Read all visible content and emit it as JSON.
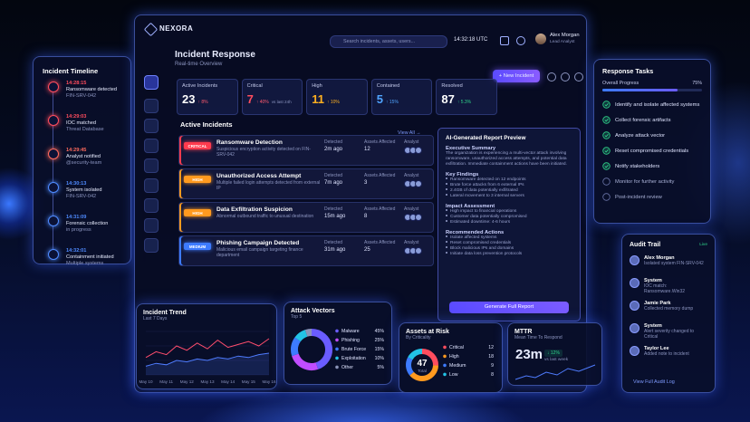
{
  "header": {
    "logo": "NEXORA",
    "search": "Search incidents, assets, users...",
    "time": "14:32:18 UTC",
    "user": "Alex Morgan",
    "role": "Lead Analyst"
  },
  "page": {
    "title": "Incident Response",
    "subtitle": "Real-time Overview",
    "new_button": "+ New Incident"
  },
  "stats": [
    {
      "label": "Active Incidents",
      "value": 23,
      "change": "↑ 8%",
      "color": "#ffffff",
      "change_color": "#ff5a6e"
    },
    {
      "label": "Critical",
      "value": 7,
      "change": "↑ 40%",
      "note": "vs last 24h",
      "color": "#ff4d5e",
      "change_color": "#ff5a6e"
    },
    {
      "label": "High",
      "value": 11,
      "change": "↑ 10%",
      "color": "#ffb020",
      "change_color": "#ffb020"
    },
    {
      "label": "Contained",
      "value": 5,
      "change": "↑ 15%",
      "color": "#4fa3ff",
      "change_color": "#4fa3ff"
    },
    {
      "label": "Resolved",
      "value": 87,
      "change": "↑ 5.3%",
      "color": "#ffffff",
      "change_color": "#2fd38a"
    }
  ],
  "timeline": {
    "title": "Incident Timeline",
    "events": [
      {
        "time": "14:28:15",
        "title": "Ransomware detected",
        "detail": "FIN-SRV-042",
        "color": "#ff4d5e"
      },
      {
        "time": "14:29:03",
        "title": "IOC matched",
        "detail": "Threat Database",
        "color": "#ff4d5e"
      },
      {
        "time": "14:29:45",
        "title": "Analyst notified",
        "detail": "@security-team",
        "color": "#ff6b5e"
      },
      {
        "time": "14:30:13",
        "title": "System isolated",
        "detail": "FIN-SRV-042",
        "color": "#4f8bff"
      },
      {
        "time": "14:31:09",
        "title": "Forensic collection",
        "detail": "in progress",
        "color": "#4f8bff"
      },
      {
        "time": "14:32:01",
        "title": "Containment initiated",
        "detail": "Multiple systems",
        "color": "#4f8bff"
      }
    ]
  },
  "incidents": {
    "title": "Active Incidents",
    "view_all": "View All →",
    "columns": [
      "Detected",
      "Assets Affected",
      "Analyst"
    ],
    "rows": [
      {
        "severity": "CRITICAL",
        "color": "#ff3b4e",
        "title": "Ransomware Detection",
        "description": "Suspicious encryption activity detected on FIN-SRV-042",
        "detected": "2m ago",
        "assets": 12
      },
      {
        "severity": "HIGH",
        "color": "#ff9a1f",
        "title": "Unauthorized Access Attempt",
        "description": "Multiple failed login attempts detected from external IP",
        "detected": "7m ago",
        "assets": 3
      },
      {
        "severity": "HIGH",
        "color": "#ff9a1f",
        "title": "Data Exfiltration Suspicion",
        "description": "Abnormal outbound traffic to unusual destination",
        "detected": "15m ago",
        "assets": 8
      },
      {
        "severity": "MEDIUM",
        "color": "#3d7bff",
        "title": "Phishing Campaign Detected",
        "description": "Malicious email campaign targeting finance department",
        "detected": "31m ago",
        "assets": 25
      }
    ]
  },
  "report": {
    "title": "AI-Generated Report Preview",
    "summary_heading": "Executive Summary",
    "summary": "The organization is experiencing a multi-vector attack involving ransomware, unauthorized access attempts, and potential data exfiltration. Immediate containment actions have been initiated.",
    "sections": [
      {
        "heading": "Key Findings",
        "items": [
          "Ransomware detected on 12 endpoints",
          "Brute force attacks from 6 external IPs",
          "2.4GB of data potentially exfiltrated",
          "Lateral movement to 3 internal servers"
        ]
      },
      {
        "heading": "Impact Assessment",
        "items": [
          "High impact to financial operations",
          "Customer data potentially compromised",
          "Estimated downtime: 4-6 hours"
        ]
      },
      {
        "heading": "Recommended Actions",
        "items": [
          "Isolate affected systems",
          "Reset compromised credentials",
          "Block malicious IPs and domains",
          "Initiate data loss prevention protocols"
        ]
      }
    ],
    "button": "Generate Full Report"
  },
  "tasks": {
    "title": "Response Tasks",
    "progress_title": "Overall Progress",
    "progress": 75,
    "progress_label": "75%",
    "items": [
      {
        "text": "Identify and isolate affected systems",
        "done": true
      },
      {
        "text": "Collect forensic artifacts",
        "done": true
      },
      {
        "text": "Analyze attack vector",
        "done": true
      },
      {
        "text": "Reset compromised credentials",
        "done": true
      },
      {
        "text": "Notify stakeholders",
        "done": true
      },
      {
        "text": "Monitor for further activity",
        "done": false
      },
      {
        "text": "Post-incident review",
        "done": false
      }
    ]
  },
  "audit": {
    "title": "Audit Trail",
    "live": "Live",
    "items": [
      {
        "actor": "Alex Morgan",
        "action": "Isolated system FIN-SRV-042"
      },
      {
        "actor": "System",
        "action": "IOC match: Ransomware.Win32"
      },
      {
        "actor": "Jamie Park",
        "action": "Collected memory dump"
      },
      {
        "actor": "System",
        "action": "Alert severity changed to Critical"
      },
      {
        "actor": "Taylor Lee",
        "action": "Added note to incident"
      }
    ],
    "link": "View Full Audit Log"
  },
  "mttr": {
    "title": "MTTR",
    "subtitle": "Mean Time To Respond",
    "value": "23m",
    "change": "↓ 12%",
    "note": "vs last week"
  },
  "chart_data": [
    {
      "type": "line",
      "title": "Incident Trend",
      "subtitle": "Last 7 Days",
      "categories": [
        "May 10",
        null,
        "May 11",
        null,
        "May 12",
        null,
        "May 13",
        null,
        "May 14",
        null,
        "May 15",
        null,
        "May 16"
      ],
      "series": [
        {
          "color": "#ff4d6d",
          "values": [
            12,
            16,
            14,
            20,
            17,
            22,
            18,
            24,
            19,
            21,
            23,
            20,
            25
          ]
        },
        {
          "color": "#4f7cff",
          "values": [
            6,
            8,
            7,
            10,
            9,
            11,
            10,
            12,
            11,
            13,
            12,
            14,
            15
          ]
        }
      ],
      "ylim": [
        0,
        30
      ]
    },
    {
      "type": "pie",
      "donut": true,
      "title": "Attack Vectors",
      "subtitle": "Top 5",
      "categories": [
        "Malware",
        "Phishing",
        "Brute Force",
        "Exploitation",
        "Other"
      ],
      "values": [
        45,
        25,
        15,
        10,
        5
      ],
      "value_labels": [
        "45%",
        "25%",
        "15%",
        "10%",
        "5%"
      ],
      "colors": [
        "#6a5cff",
        "#c04dff",
        "#3d7bff",
        "#22c3e6",
        "#8a93b8"
      ]
    },
    {
      "type": "pie",
      "donut": true,
      "title": "Assets at Risk",
      "subtitle": "By Criticality",
      "center_value": 47,
      "center_label": "Total",
      "categories": [
        "Critical",
        "High",
        "Medium",
        "Low"
      ],
      "values": [
        12,
        18,
        9,
        8
      ],
      "colors": [
        "#ff4d5e",
        "#ff9a1f",
        "#3d7bff",
        "#22c3e6"
      ]
    }
  ]
}
